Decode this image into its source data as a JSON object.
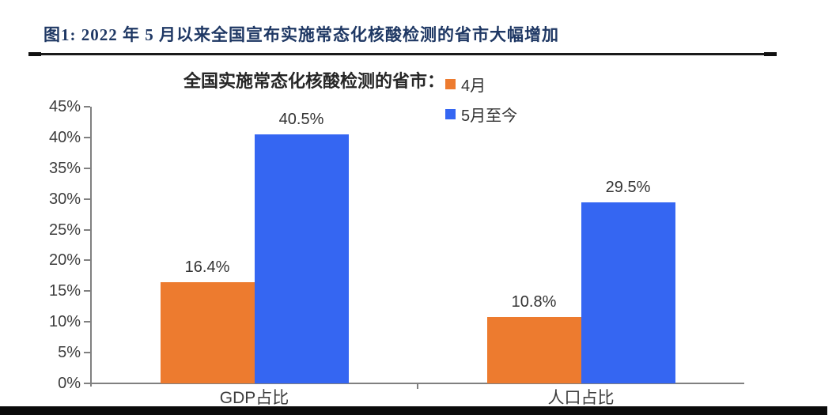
{
  "page": {
    "figure_title": "图1:  2022 年 5 月以来全国宣布实施常态化核酸检测的省市大幅增加"
  },
  "chart_data": {
    "type": "bar",
    "title": "全国实施常态化核酸检测的省市：",
    "categories": [
      "GDP占比",
      "人口占比"
    ],
    "series": [
      {
        "name": "4月",
        "color": "#ED7B2F",
        "values": [
          16.4,
          10.8
        ],
        "labels": [
          "16.4%",
          "10.8%"
        ]
      },
      {
        "name": "5月至今",
        "color": "#3566F2",
        "values": [
          40.5,
          29.5
        ],
        "labels": [
          "40.5%",
          "29.5%"
        ]
      }
    ],
    "xlabel": "",
    "ylabel": "",
    "ylim": [
      0,
      45
    ],
    "ytick_step": 5,
    "ytick_labels": [
      "0%",
      "5%",
      "10%",
      "15%",
      "20%",
      "25%",
      "30%",
      "35%",
      "40%",
      "45%"
    ],
    "grid": false,
    "legend_position": "top-right",
    "axis_color": "#808080"
  }
}
